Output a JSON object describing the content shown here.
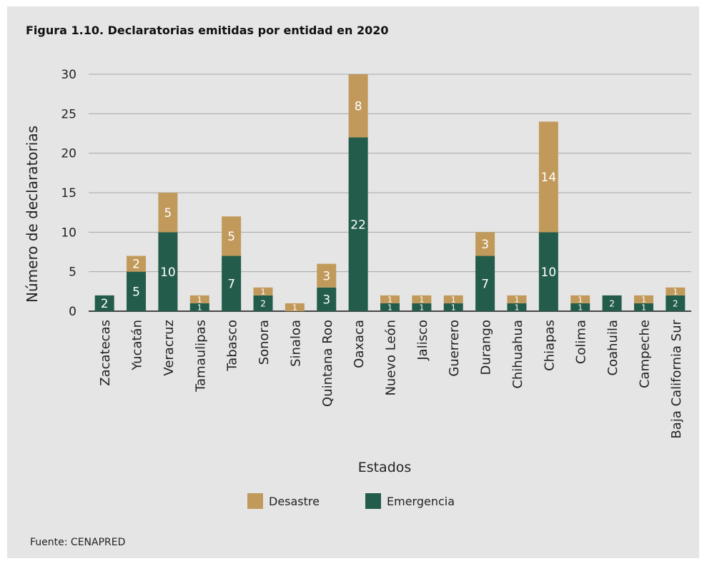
{
  "title": "Figura 1.10. Declaratorias emitidas por entidad en 2020",
  "source": "Fuente: CENAPRED",
  "colors": {
    "desastre": "#c19a5b",
    "emergencia": "#235c4b",
    "grid": "#a6a6a6",
    "panel": "#e5e5e5"
  },
  "chart_data": {
    "type": "bar",
    "stacked": true,
    "xlabel": "Estados",
    "ylabel": "Número de declaratorias",
    "ylim": [
      0,
      30
    ],
    "yticks": [
      0,
      5,
      10,
      15,
      20,
      25,
      30
    ],
    "grid": true,
    "legend_position": "bottom",
    "categories": [
      "Zacatecas",
      "Yucatán",
      "Veracruz",
      "Tamaulipas",
      "Tabasco",
      "Sonora",
      "Sinaloa",
      "Quintana Roo",
      "Oaxaca",
      "Nuevo León",
      "Jalisco",
      "Guerrero",
      "Durango",
      "Chihuahua",
      "Chiapas",
      "Colima",
      "Coahuila",
      "Campeche",
      "Baja California Sur"
    ],
    "series": [
      {
        "name": "Emergencia",
        "values": [
          2,
          5,
          10,
          1,
          7,
          2,
          0,
          3,
          22,
          1,
          1,
          1,
          7,
          1,
          10,
          1,
          2,
          1,
          2
        ]
      },
      {
        "name": "Desastre",
        "values": [
          0,
          2,
          5,
          1,
          5,
          1,
          1,
          3,
          8,
          1,
          1,
          1,
          3,
          1,
          14,
          1,
          0,
          1,
          1
        ]
      }
    ]
  }
}
